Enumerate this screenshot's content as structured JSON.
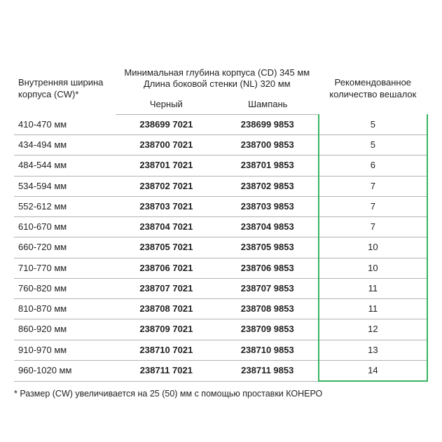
{
  "colors": {
    "text": "#222222",
    "border": "#b3b3b3",
    "highlight": "#35b460",
    "background": "#ffffff"
  },
  "header": {
    "col1_line1": "Внутренняя ширина",
    "col1_line2": "корпуса (CW)*",
    "mid_line1": "Минимальная глубина корпуса (CD) 345 мм",
    "mid_line2": "Длина боковой стенки (NL) 320 мм",
    "col2": "Черный",
    "col3": "Шампань",
    "col4_line1": "Рекомендованное",
    "col4_line2": "количество вешалок"
  },
  "rows": [
    {
      "width": "410-470 мм",
      "black": "238699 7021",
      "champ": "238699 9853",
      "count": "5"
    },
    {
      "width": "434-494 мм",
      "black": "238700 7021",
      "champ": "238700 9853",
      "count": "5"
    },
    {
      "width": "484-544 мм",
      "black": "238701 7021",
      "champ": "238701 9853",
      "count": "6"
    },
    {
      "width": "534-594 мм",
      "black": "238702 7021",
      "champ": "238702 9853",
      "count": "7"
    },
    {
      "width": "552-612 мм",
      "black": "238703 7021",
      "champ": "238703 9853",
      "count": "7"
    },
    {
      "width": "610-670 мм",
      "black": "238704 7021",
      "champ": "238704 9853",
      "count": "7"
    },
    {
      "width": "660-720 мм",
      "black": "238705 7021",
      "champ": "238705 9853",
      "count": "10"
    },
    {
      "width": "710-770 мм",
      "black": "238706 7021",
      "champ": "238706 9853",
      "count": "10"
    },
    {
      "width": "760-820 мм",
      "black": "238707 7021",
      "champ": "238707 9853",
      "count": "11"
    },
    {
      "width": "810-870 мм",
      "black": "238708 7021",
      "champ": "238708 9853",
      "count": "11"
    },
    {
      "width": "860-920 мм",
      "black": "238709 7021",
      "champ": "238709 9853",
      "count": "12"
    },
    {
      "width": "910-970 мм",
      "black": "238710 7021",
      "champ": "238710 9853",
      "count": "13"
    },
    {
      "width": "960-1020 мм",
      "black": "238711 7021",
      "champ": "238711 9853",
      "count": "14"
    }
  ],
  "footnote": "* Размер (CW) увеличивается на 25 (50) мм с помощью проставки КОНЕРО"
}
